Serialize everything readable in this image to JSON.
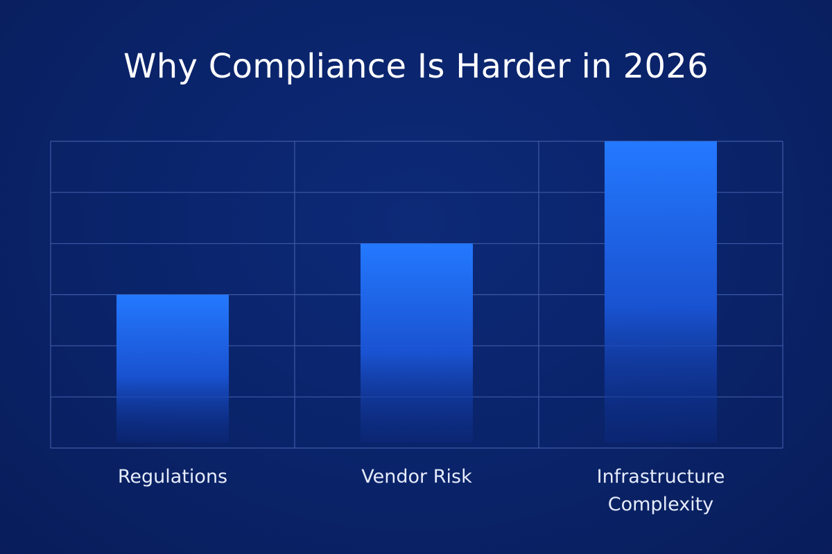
{
  "title": "Why Compliance Is Harder in 2026",
  "colors": {
    "background": "#0a2369",
    "grid": "#3e5aa6",
    "bar_top": "#2479ff",
    "bar_bottom": "#0c2a82"
  },
  "chart_data": {
    "type": "bar",
    "title": "Why Compliance Is Harder in 2026",
    "xlabel": "",
    "ylabel": "",
    "categories": [
      [
        "Regulations"
      ],
      [
        "Vendor Risk"
      ],
      [
        "Infrastructure",
        "Complexity"
      ]
    ],
    "values": [
      3,
      4,
      6
    ],
    "ylim": [
      0,
      6
    ],
    "grid": true,
    "y_ticks_shown": false,
    "legend": "none"
  }
}
